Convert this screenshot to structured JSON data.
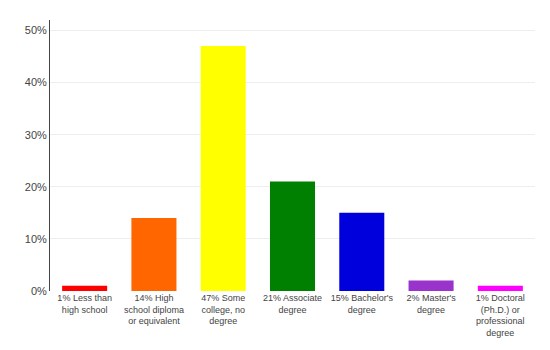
{
  "chart_data": {
    "type": "bar",
    "categories": [
      "1% Less than\nhigh school",
      "14% High\nschool diploma\nor equivalent",
      "47% Some\ncollege, no\ndegree",
      "21% Associate\ndegree",
      "15% Bachelor's\ndegree",
      "2% Master's\ndegree",
      "1% Doctoral\n(Ph.D.) or\nprofessional\ndegree"
    ],
    "values": [
      1,
      14,
      47,
      21,
      15,
      2,
      1
    ],
    "colors": [
      "#ff0000",
      "#ff6600",
      "#ffff00",
      "#008000",
      "#0000dd",
      "#9933cc",
      "#ff00ff"
    ],
    "ylim": [
      0,
      52
    ],
    "yticks": [
      {
        "value": 0,
        "label": "0%"
      },
      {
        "value": 10,
        "label": "10%"
      },
      {
        "value": 20,
        "label": "20%"
      },
      {
        "value": 30,
        "label": "30%"
      },
      {
        "value": 40,
        "label": "40%"
      },
      {
        "value": 50,
        "label": "50%"
      }
    ],
    "grid": true
  }
}
